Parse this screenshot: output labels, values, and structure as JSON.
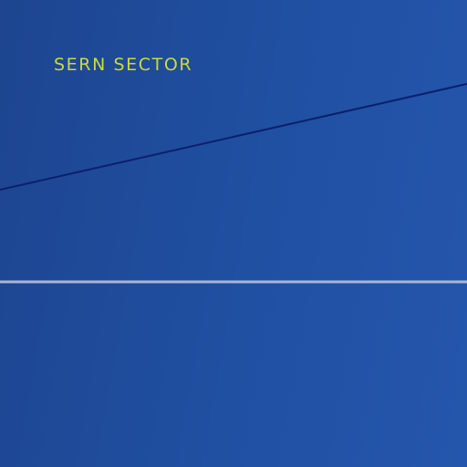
{
  "label": {
    "text": "SERN SECTOR"
  },
  "colors": {
    "background": "#2050a2",
    "label": "#c9da3a",
    "diagonal_line": "#0c1f6e",
    "horizontal_line": "#a9b6d6"
  }
}
